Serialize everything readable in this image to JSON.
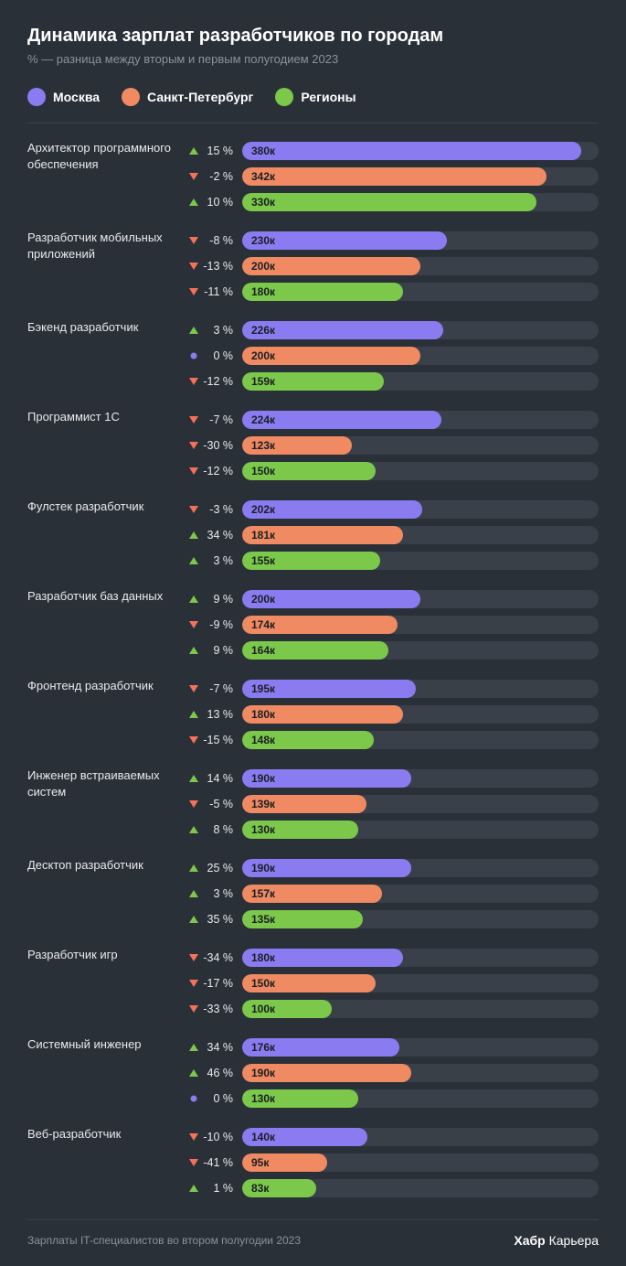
{
  "title": "Динамика зарплат разработчиков по городам",
  "subtitle": "% — разница между вторым и первым полугодием 2023",
  "max_value": 400,
  "colors": {
    "moscow": "#8a7cf0",
    "spb": "#f08a62",
    "regions": "#7bc84a",
    "up": "#7bc84a",
    "down": "#f57256",
    "neutral": "#8a7cf0",
    "track": "#3a4049",
    "bg": "#2a3038",
    "text": "#e8eaed",
    "muted": "#8c929c"
  },
  "legend": [
    {
      "label": "Москва",
      "color_key": "moscow"
    },
    {
      "label": "Санкт-Петербург",
      "color_key": "spb"
    },
    {
      "label": "Регионы",
      "color_key": "regions"
    }
  ],
  "groups": [
    {
      "label": "Архитектор программного обеспечения",
      "rows": [
        {
          "trend": "up",
          "pct": "15 %",
          "value": 380,
          "value_label": "380к",
          "color_key": "moscow"
        },
        {
          "trend": "down",
          "pct": "-2 %",
          "value": 342,
          "value_label": "342к",
          "color_key": "spb"
        },
        {
          "trend": "up",
          "pct": "10 %",
          "value": 330,
          "value_label": "330к",
          "color_key": "regions"
        }
      ]
    },
    {
      "label": "Разработчик мобильных приложений",
      "rows": [
        {
          "trend": "down",
          "pct": "-8 %",
          "value": 230,
          "value_label": "230к",
          "color_key": "moscow"
        },
        {
          "trend": "down",
          "pct": "-13 %",
          "value": 200,
          "value_label": "200к",
          "color_key": "spb"
        },
        {
          "trend": "down",
          "pct": "-11 %",
          "value": 180,
          "value_label": "180к",
          "color_key": "regions"
        }
      ]
    },
    {
      "label": "Бэкенд разработчик",
      "rows": [
        {
          "trend": "up",
          "pct": "3 %",
          "value": 226,
          "value_label": "226к",
          "color_key": "moscow"
        },
        {
          "trend": "none",
          "pct": "0 %",
          "value": 200,
          "value_label": "200к",
          "color_key": "spb"
        },
        {
          "trend": "down",
          "pct": "-12 %",
          "value": 159,
          "value_label": "159к",
          "color_key": "regions"
        }
      ]
    },
    {
      "label": "Программист 1С",
      "rows": [
        {
          "trend": "down",
          "pct": "-7 %",
          "value": 224,
          "value_label": "224к",
          "color_key": "moscow"
        },
        {
          "trend": "down",
          "pct": "-30 %",
          "value": 123,
          "value_label": "123к",
          "color_key": "spb"
        },
        {
          "trend": "down",
          "pct": "-12 %",
          "value": 150,
          "value_label": "150к",
          "color_key": "regions"
        }
      ]
    },
    {
      "label": "Фулстек разработчик",
      "rows": [
        {
          "trend": "down",
          "pct": "-3 %",
          "value": 202,
          "value_label": "202к",
          "color_key": "moscow"
        },
        {
          "trend": "up",
          "pct": "34 %",
          "value": 181,
          "value_label": "181к",
          "color_key": "spb"
        },
        {
          "trend": "up",
          "pct": "3 %",
          "value": 155,
          "value_label": "155к",
          "color_key": "regions"
        }
      ]
    },
    {
      "label": "Разработчик баз данных",
      "rows": [
        {
          "trend": "up",
          "pct": "9 %",
          "value": 200,
          "value_label": "200к",
          "color_key": "moscow"
        },
        {
          "trend": "down",
          "pct": "-9 %",
          "value": 174,
          "value_label": "174к",
          "color_key": "spb"
        },
        {
          "trend": "up",
          "pct": "9 %",
          "value": 164,
          "value_label": "164к",
          "color_key": "regions"
        }
      ]
    },
    {
      "label": "Фронтенд разработчик",
      "rows": [
        {
          "trend": "down",
          "pct": "-7 %",
          "value": 195,
          "value_label": "195к",
          "color_key": "moscow"
        },
        {
          "trend": "up",
          "pct": "13 %",
          "value": 180,
          "value_label": "180к",
          "color_key": "spb"
        },
        {
          "trend": "down",
          "pct": "-15 %",
          "value": 148,
          "value_label": "148к",
          "color_key": "regions"
        }
      ]
    },
    {
      "label": "Инженер встраиваемых систем",
      "rows": [
        {
          "trend": "up",
          "pct": "14 %",
          "value": 190,
          "value_label": "190к",
          "color_key": "moscow"
        },
        {
          "trend": "down",
          "pct": "-5 %",
          "value": 139,
          "value_label": "139к",
          "color_key": "spb"
        },
        {
          "trend": "up",
          "pct": "8 %",
          "value": 130,
          "value_label": "130к",
          "color_key": "regions"
        }
      ]
    },
    {
      "label": "Десктоп разработчик",
      "rows": [
        {
          "trend": "up",
          "pct": "25 %",
          "value": 190,
          "value_label": "190к",
          "color_key": "moscow"
        },
        {
          "trend": "up",
          "pct": "3 %",
          "value": 157,
          "value_label": "157к",
          "color_key": "spb"
        },
        {
          "trend": "up",
          "pct": "35 %",
          "value": 135,
          "value_label": "135к",
          "color_key": "regions"
        }
      ]
    },
    {
      "label": "Разработчик игр",
      "rows": [
        {
          "trend": "down",
          "pct": "-34 %",
          "value": 180,
          "value_label": "180к",
          "color_key": "moscow"
        },
        {
          "trend": "down",
          "pct": "-17 %",
          "value": 150,
          "value_label": "150к",
          "color_key": "spb"
        },
        {
          "trend": "down",
          "pct": "-33 %",
          "value": 100,
          "value_label": "100к",
          "color_key": "regions"
        }
      ]
    },
    {
      "label": "Системный инженер",
      "rows": [
        {
          "trend": "up",
          "pct": "34 %",
          "value": 176,
          "value_label": "176к",
          "color_key": "moscow"
        },
        {
          "trend": "up",
          "pct": "46 %",
          "value": 190,
          "value_label": "190к",
          "color_key": "spb"
        },
        {
          "trend": "none",
          "pct": "0 %",
          "value": 130,
          "value_label": "130к",
          "color_key": "regions"
        }
      ]
    },
    {
      "label": "Веб-разработчик",
      "rows": [
        {
          "trend": "down",
          "pct": "-10 %",
          "value": 140,
          "value_label": "140к",
          "color_key": "moscow"
        },
        {
          "trend": "down",
          "pct": "-41 %",
          "value": 95,
          "value_label": "95к",
          "color_key": "spb"
        },
        {
          "trend": "up",
          "pct": "1 %",
          "value": 83,
          "value_label": "83к",
          "color_key": "regions"
        }
      ]
    }
  ],
  "footer": {
    "left": "Зарплаты IT-специалистов во втором полугодии 2023",
    "right_bold": "Хабр",
    "right_rest": " Карьера"
  }
}
